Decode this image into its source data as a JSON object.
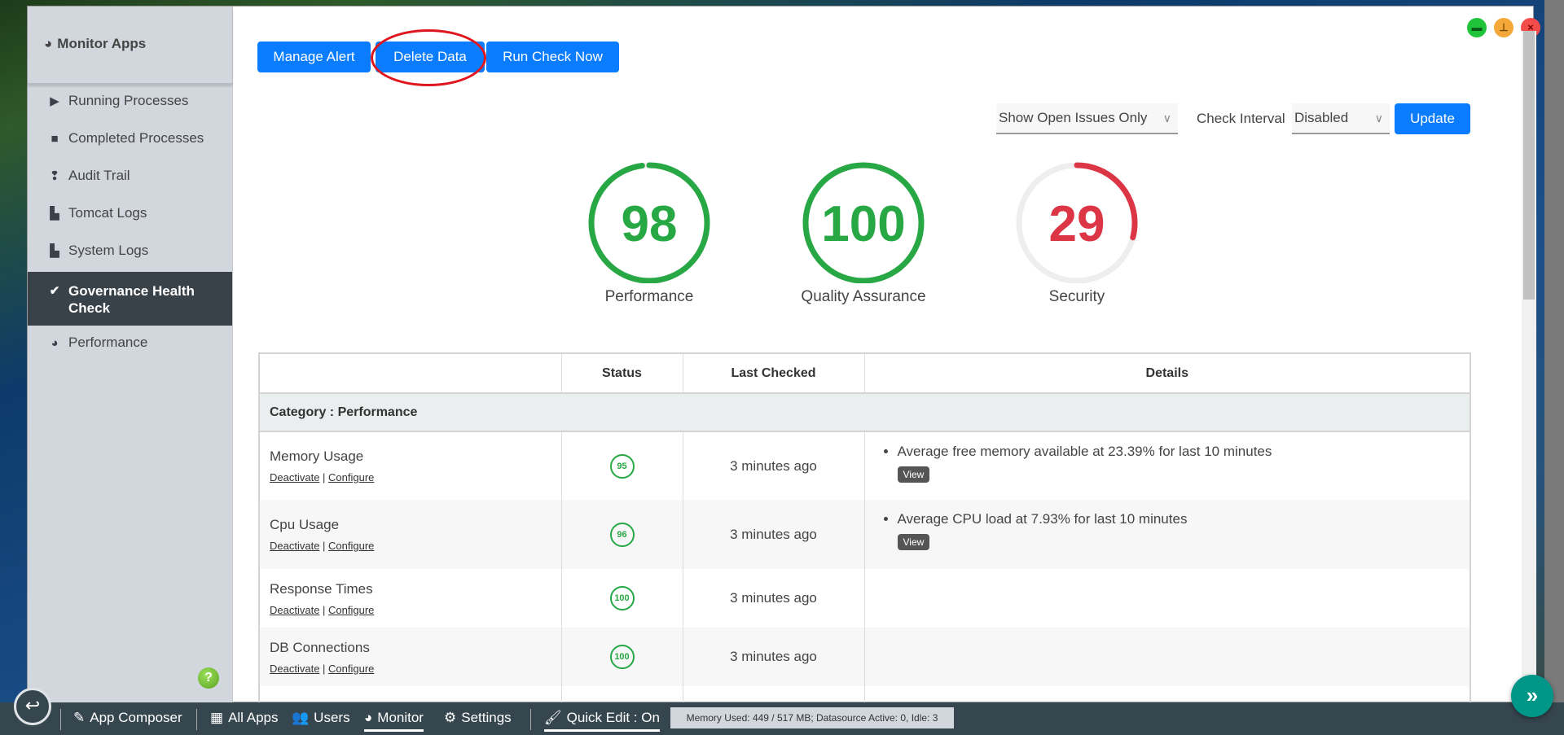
{
  "sidebar": {
    "title": "Monitor Apps",
    "items": [
      {
        "label": "Running Processes",
        "icon": "play-icon"
      },
      {
        "label": "Completed Processes",
        "icon": "stop-icon"
      },
      {
        "label": "Audit Trail",
        "icon": "footprints-icon"
      },
      {
        "label": "Tomcat Logs",
        "icon": "scroll-icon"
      },
      {
        "label": "System Logs",
        "icon": "scroll-icon"
      },
      {
        "label": "Governance Health Check",
        "icon": "check-circle-icon",
        "active": true
      },
      {
        "label": "Performance",
        "icon": "tachometer-icon"
      }
    ],
    "help": "?"
  },
  "toolbar": {
    "manage_alert": "Manage Alert",
    "delete_data": "Delete Data",
    "run_check": "Run Check Now"
  },
  "filters": {
    "issues_select": "Show Open Issues Only",
    "interval_label": "Check Interval",
    "interval_select": "Disabled",
    "update": "Update"
  },
  "scores": [
    {
      "label": "Performance",
      "value": 98,
      "color": "#28a745"
    },
    {
      "label": "Quality Assurance",
      "value": 100,
      "color": "#28a745"
    },
    {
      "label": "Security",
      "value": 29,
      "color": "#dc3545"
    }
  ],
  "table": {
    "headers": [
      "",
      "Status",
      "Last Checked",
      "Details"
    ],
    "category": "Category : Performance",
    "link_deactivate": "Deactivate",
    "link_configure": "Configure",
    "view": "View",
    "rows": [
      {
        "name": "Memory Usage",
        "status": "95",
        "checked": "3 minutes ago",
        "detail": "Average free memory available at 23.39% for last 10 minutes"
      },
      {
        "name": "Cpu Usage",
        "status": "96",
        "checked": "3 minutes ago",
        "detail": "Average CPU load at 7.93% for last 10 minutes"
      },
      {
        "name": "Response Times",
        "status": "100",
        "checked": "3 minutes ago"
      },
      {
        "name": "DB Connections",
        "status": "100",
        "checked": "3 minutes ago"
      }
    ]
  },
  "taskbar": {
    "app_composer": "App Composer",
    "all_apps": "All Apps",
    "users": "Users",
    "monitor": "Monitor",
    "settings": "Settings",
    "quick_edit": "Quick Edit : On",
    "memory": "Memory Used: 449 / 517 MB; Datasource Active: 0, Idle: 3"
  },
  "colors": {
    "primary": "#0a7cff",
    "good": "#28a745",
    "bad": "#dc3545",
    "taskbar": "#36464f",
    "fab": "#009688"
  }
}
